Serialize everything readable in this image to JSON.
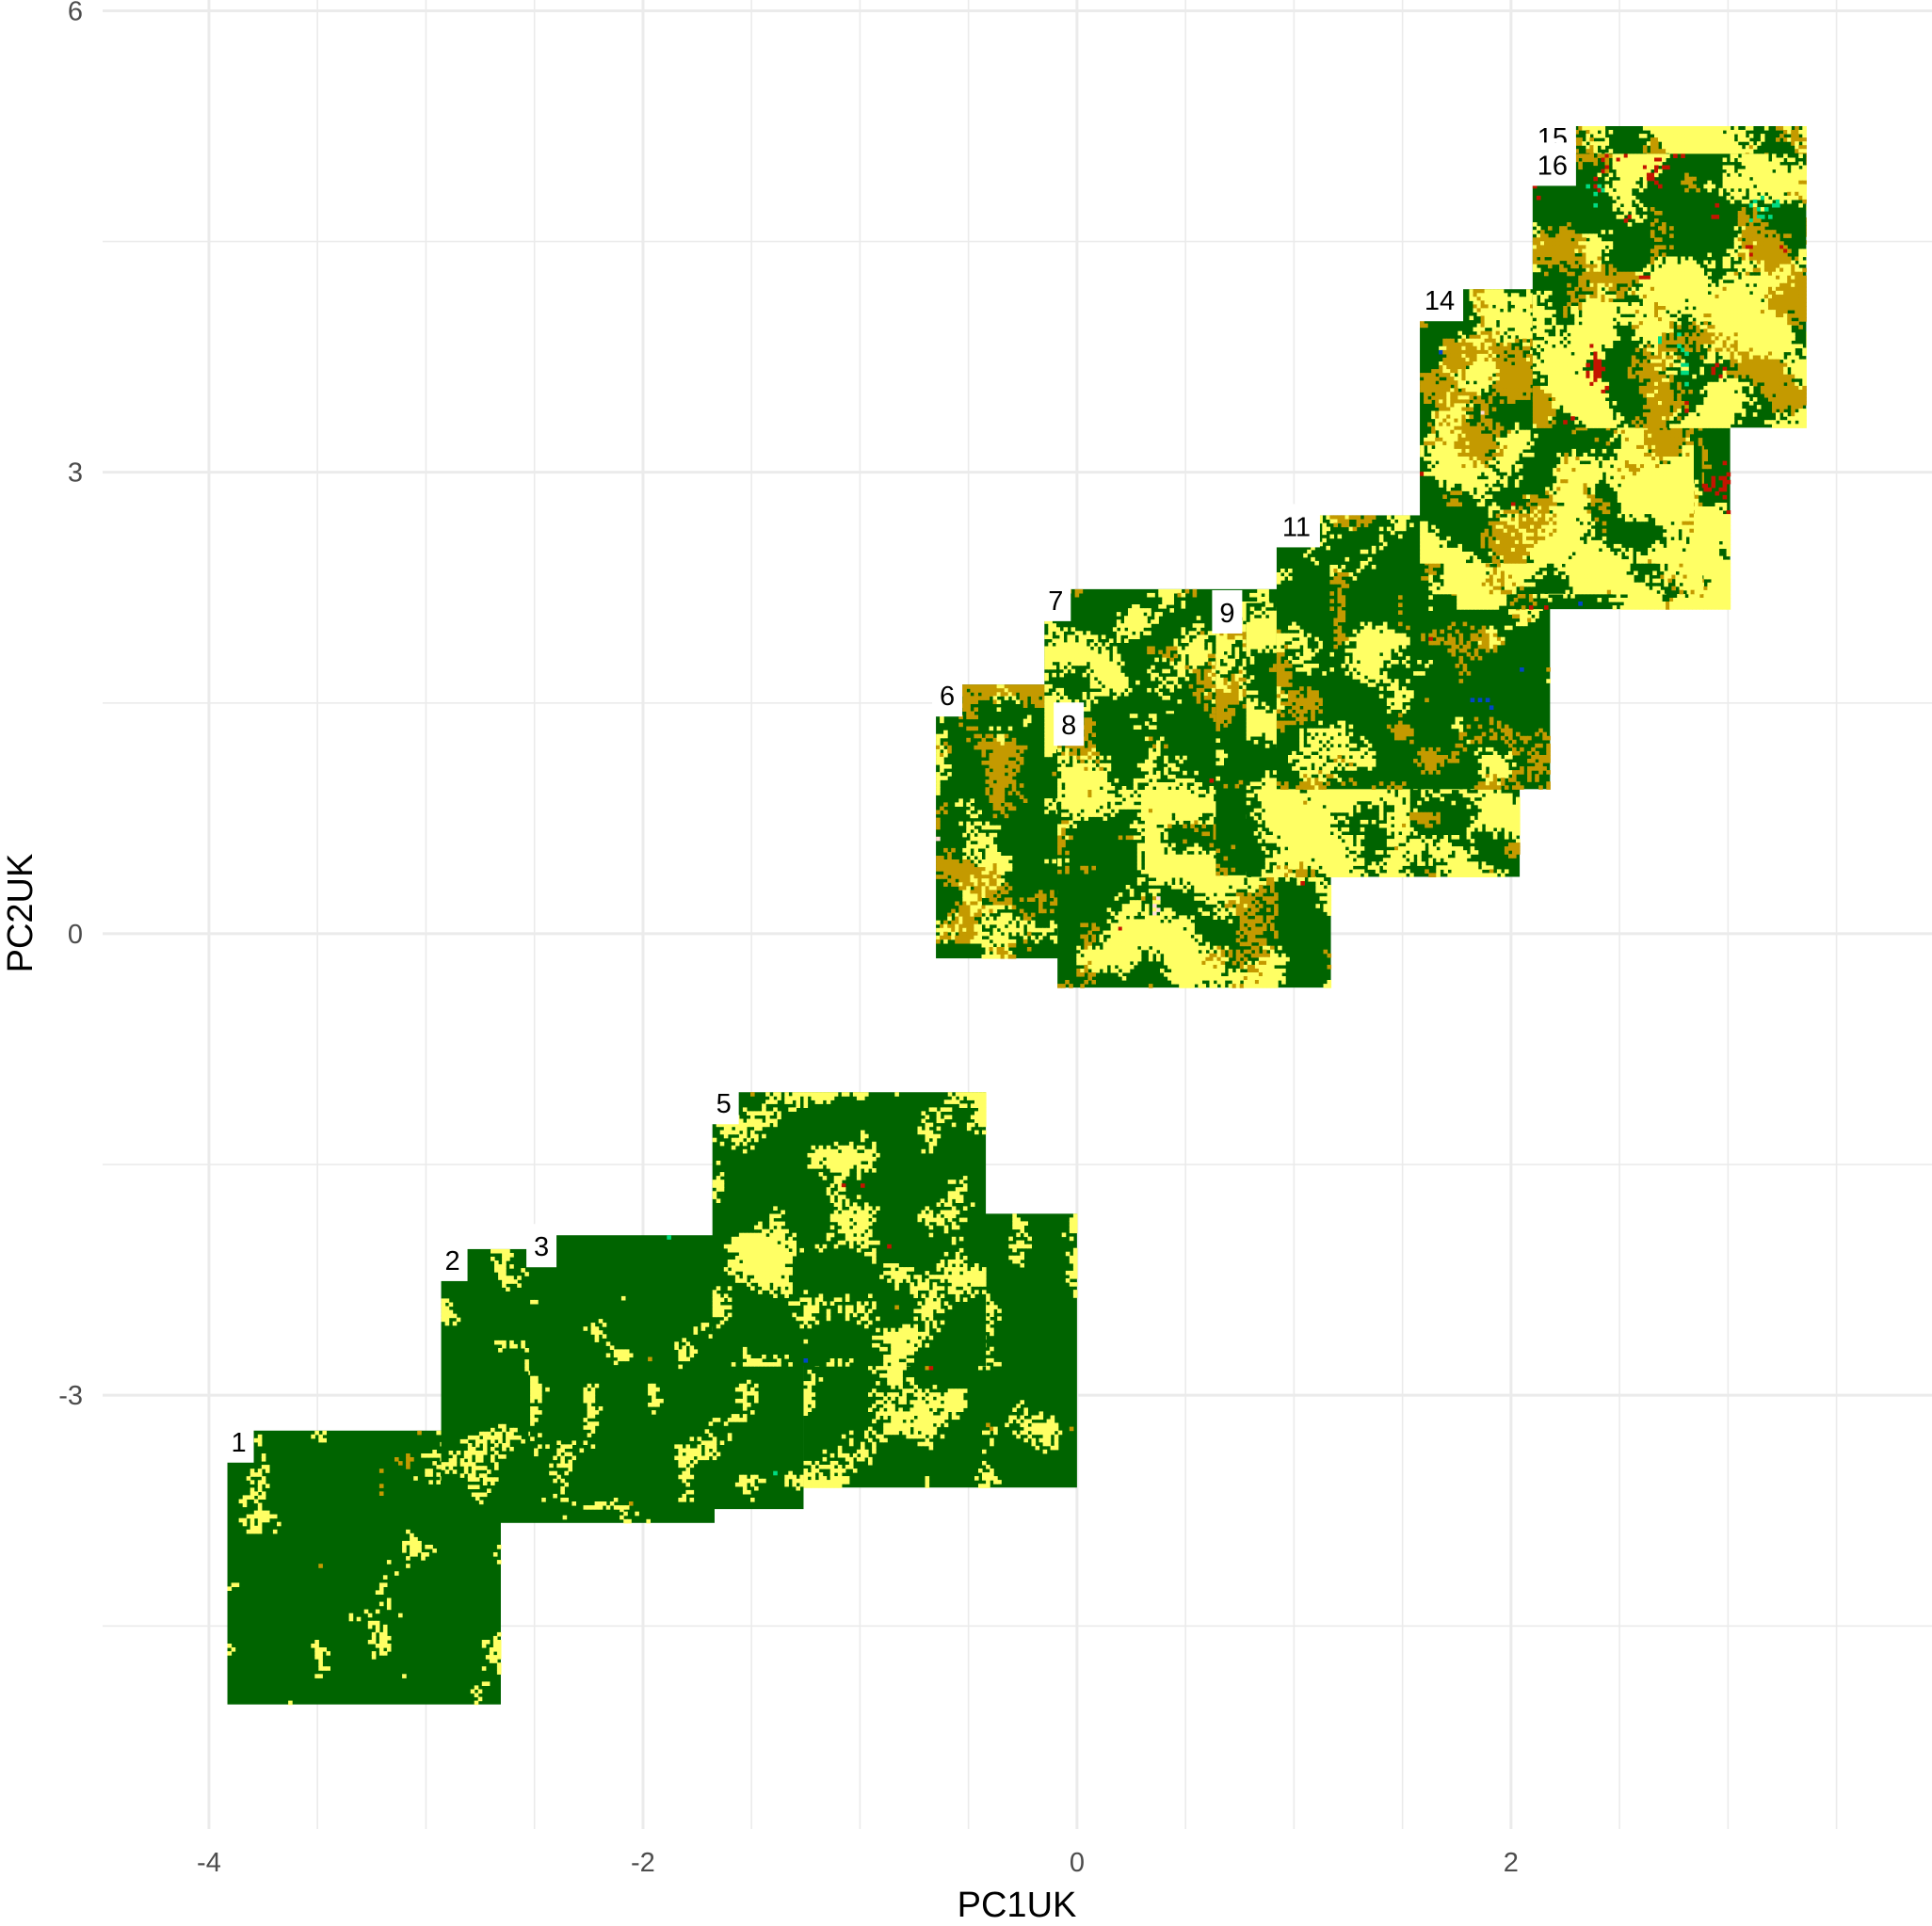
{
  "chart_data": {
    "type": "heatmap",
    "title": "",
    "xlabel": "PC1UK",
    "ylabel": "PC2UK",
    "xlim": [
      -4.49,
      3.94
    ],
    "ylim": [
      -5.82,
      6.07
    ],
    "x_ticks": [
      "-4",
      "-2",
      "0",
      "2"
    ],
    "y_ticks": [
      "-3",
      "0",
      "3",
      "6"
    ],
    "grid": true,
    "legend": "none",
    "tile_extent": {
      "width": 1.26,
      "height": 1.78
    },
    "colors": {
      "forest": "#006400",
      "grassland": "#ffff64",
      "cropland": "#c49a00",
      "urban": "#c31400",
      "water": "#0046c8",
      "wetland": "#00dc82",
      "bare": "#ffdcd2"
    },
    "tiles": [
      {
        "id": 1,
        "label": "1",
        "x": -3.285,
        "y": -4.12,
        "mix": [
          88,
          10,
          1,
          0,
          0.3,
          0.3,
          0
        ]
      },
      {
        "id": 2,
        "label": "2",
        "x": -2.3,
        "y": -2.94,
        "mix": [
          88,
          10,
          1,
          0.2,
          0.3,
          0.3,
          0
        ]
      },
      {
        "id": 3,
        "label": "3",
        "x": -1.89,
        "y": -2.85,
        "mix": [
          86,
          12,
          1,
          0.2,
          0.3,
          0.3,
          0
        ]
      },
      {
        "id": 4,
        "x": -0.63,
        "y": -2.71,
        "mix": [
          80,
          18,
          1,
          0.2,
          0.3,
          0,
          0.2
        ]
      },
      {
        "id": 5,
        "label": "5",
        "x": -1.05,
        "y": -1.92,
        "mix": [
          78,
          19,
          1.5,
          0.5,
          0.3,
          0,
          0.3
        ]
      },
      {
        "id": 6,
        "label": "6",
        "x": -0.02,
        "y": 0.73,
        "mix": [
          62,
          15,
          19,
          1.5,
          1.5,
          0,
          0.5
        ]
      },
      {
        "id": 7,
        "label": "7",
        "x": 0.48,
        "y": 1.35,
        "mix": [
          66,
          25,
          6,
          1,
          0.5,
          0,
          1
        ]
      },
      {
        "id": 8,
        "label": "8",
        "x": 0.54,
        "y": 0.54,
        "mix": [
          64,
          25,
          8,
          1,
          0.5,
          0,
          1
        ]
      },
      {
        "id": 9,
        "label": "9",
        "x": 1.27,
        "y": 1.27,
        "mix": [
          60,
          18,
          18,
          2,
          1.5,
          0,
          0.5
        ]
      },
      {
        "id": 10,
        "x": 1.41,
        "y": 1.26,
        "mix": [
          55,
          28,
          14,
          2,
          0.5,
          0,
          0.5
        ]
      },
      {
        "id": 11,
        "label": "11",
        "x": 1.55,
        "y": 1.83,
        "mix": [
          60,
          20,
          16,
          2,
          1,
          0,
          0.5
        ]
      },
      {
        "id": 12,
        "x": 2.38,
        "y": 3.0,
        "mix": [
          42,
          38,
          14,
          4,
          1,
          0,
          1
        ]
      },
      {
        "id": 13,
        "x": 2.25,
        "y": 3.1,
        "mix": [
          42,
          38,
          15,
          3,
          1,
          0,
          1
        ]
      },
      {
        "id": 14,
        "label": "14",
        "x": 2.21,
        "y": 3.3,
        "mix": [
          40,
          32,
          24,
          2.5,
          0.5,
          0.5,
          0.5
        ]
      },
      {
        "id": 15,
        "label": "15",
        "x": 2.73,
        "y": 4.36,
        "mix": [
          42,
          28,
          25,
          2,
          0.5,
          2,
          0.5
        ]
      },
      {
        "id": 16,
        "label": "16",
        "x": 2.73,
        "y": 4.18,
        "mix": [
          36,
          30,
          22,
          7,
          0.5,
          4,
          0.5
        ]
      }
    ]
  }
}
